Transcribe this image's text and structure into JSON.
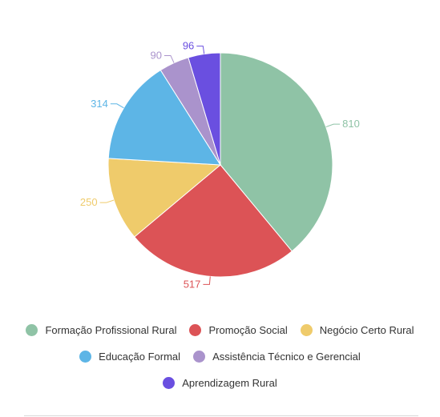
{
  "chart_data": {
    "type": "pie",
    "title": "",
    "categories": [
      "Formação Profissional Rural",
      "Promoção Social",
      "Negócio Certo Rural",
      "Educação Formal",
      "Assistência Técnico e Gerencial",
      "Aprendizagem Rural"
    ],
    "values": [
      810,
      517,
      250,
      314,
      90,
      96
    ],
    "colors": [
      "#8fc3a6",
      "#dc5356",
      "#efcb6b",
      "#5db5e6",
      "#aa93cc",
      "#6a4fe0"
    ],
    "data_labels": [
      "810",
      "517",
      "250",
      "314",
      "90",
      "96"
    ],
    "legend_position": "bottom",
    "start_angle": "12 o'clock",
    "direction": "clockwise"
  }
}
